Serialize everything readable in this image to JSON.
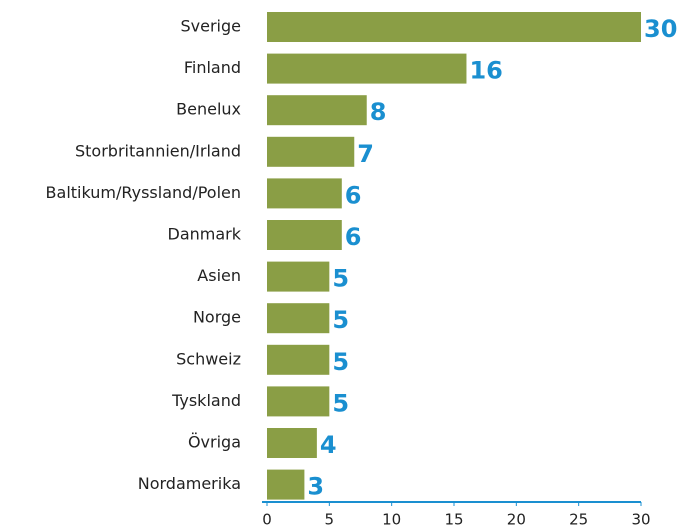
{
  "chart_data": {
    "type": "bar",
    "orientation": "horizontal",
    "categories": [
      "Sverige",
      "Finland",
      "Benelux",
      "Storbritannien/Irland",
      "Baltikum/Ryssland/Polen",
      "Danmark",
      "Asien",
      "Norge",
      "Schweiz",
      "Tyskland",
      "Övriga",
      "Nordamerika"
    ],
    "values": [
      30,
      16,
      8,
      7,
      6,
      6,
      5,
      5,
      5,
      5,
      4,
      3
    ],
    "color": "#8a9e45",
    "label_color": "#1a8fd0",
    "axis_color": "#1a8fd0",
    "xlim": [
      0,
      30
    ],
    "xticks": [
      0,
      5,
      10,
      15,
      20,
      25,
      30
    ]
  }
}
